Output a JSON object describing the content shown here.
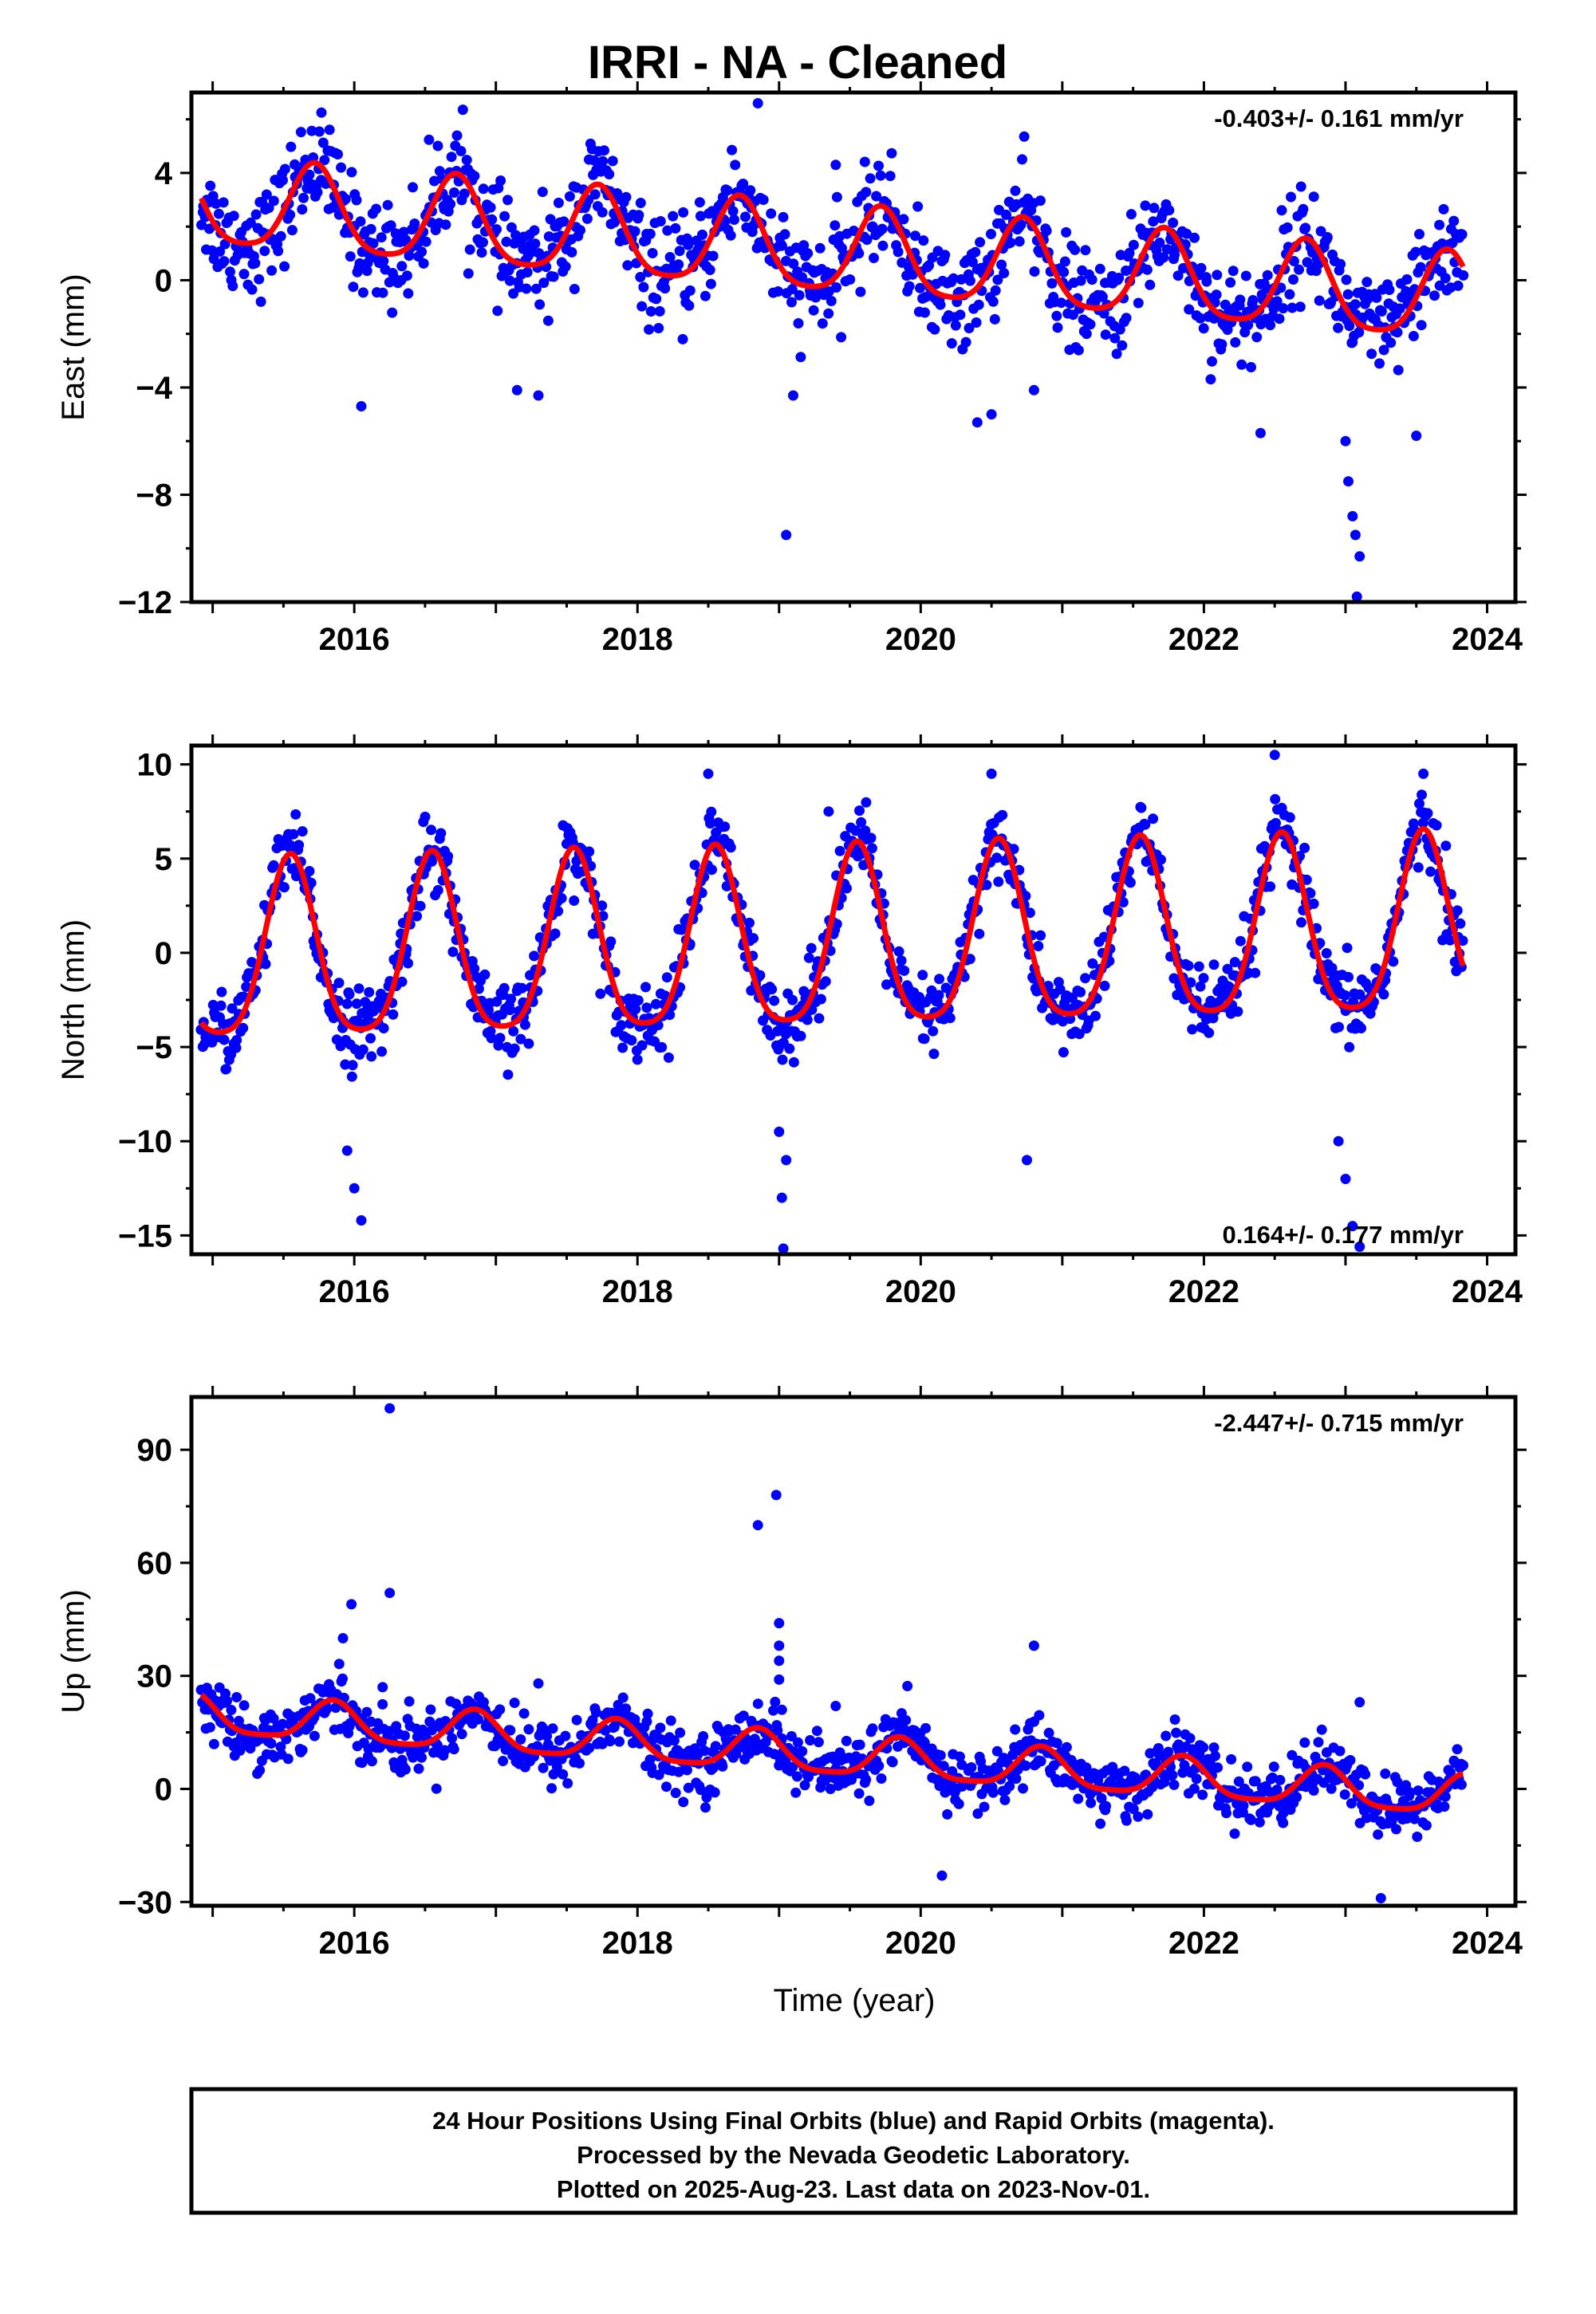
{
  "title": "IRRI  - NA - Cleaned",
  "colors": {
    "final_orbits": "#0000ff",
    "rapid_orbits": "#ff00ff",
    "model": "#ff0000",
    "frame": "#000000"
  },
  "chart_data": [
    {
      "type": "scatter",
      "ylabel": "East (mm)",
      "xlabel": "",
      "xlim": [
        2014.85,
        2024.2
      ],
      "ylim": [
        -12,
        7
      ],
      "xticks": [
        "2016",
        "2018",
        "2020",
        "2022",
        "2024"
      ],
      "yticks": [
        "4",
        "0",
        "−4",
        "−8",
        "−12"
      ],
      "rate_label": "-0.403+/- 0.161 mm/yr",
      "rate_position": "top-right",
      "model": {
        "offset": 1.0,
        "trend": -0.403,
        "annual_amp": 1.6,
        "annual_peak": 0.72,
        "semiannual_amp": 0.3
      },
      "scatter_stats": {
        "noise_sd": 0.95,
        "count": 1100
      },
      "outliers": [
        {
          "x": 2016.05,
          "y": -4.7
        },
        {
          "x": 2017.15,
          "y": -4.1
        },
        {
          "x": 2017.3,
          "y": -4.3
        },
        {
          "x": 2018.85,
          "y": 6.6
        },
        {
          "x": 2019.05,
          "y": -9.5
        },
        {
          "x": 2019.1,
          "y": -4.3
        },
        {
          "x": 2019.4,
          "y": 4.3
        },
        {
          "x": 2020.4,
          "y": -5.3
        },
        {
          "x": 2020.5,
          "y": -5.0
        },
        {
          "x": 2020.8,
          "y": -4.1
        },
        {
          "x": 2023.0,
          "y": -6.0
        },
        {
          "x": 2023.02,
          "y": -7.5
        },
        {
          "x": 2023.05,
          "y": -8.8
        },
        {
          "x": 2023.07,
          "y": -9.5
        },
        {
          "x": 2023.1,
          "y": -10.3
        },
        {
          "x": 2023.08,
          "y": -11.8
        },
        {
          "x": 2022.4,
          "y": -5.7
        },
        {
          "x": 2023.5,
          "y": -5.8
        }
      ]
    },
    {
      "type": "scatter",
      "ylabel": "North (mm)",
      "xlabel": "",
      "xlim": [
        2014.85,
        2024.2
      ],
      "ylim": [
        -16,
        11
      ],
      "xticks": [
        "2016",
        "2018",
        "2020",
        "2022",
        "2024"
      ],
      "yticks": [
        "10",
        "5",
        "0",
        "−5",
        "−10",
        "−15"
      ],
      "rate_label": "0.164+/- 0.177 mm/yr",
      "rate_position": "bottom-right",
      "model": {
        "offset": 0.3,
        "trend": 0.164,
        "annual_amp": 4.7,
        "annual_peak": 0.55,
        "semiannual_amp": 0.9
      },
      "scatter_stats": {
        "noise_sd": 1.0,
        "count": 1100
      },
      "outliers": [
        {
          "x": 2015.95,
          "y": -10.5
        },
        {
          "x": 2016.0,
          "y": -12.5
        },
        {
          "x": 2016.05,
          "y": -14.2
        },
        {
          "x": 2018.5,
          "y": 9.5
        },
        {
          "x": 2019.0,
          "y": -9.5
        },
        {
          "x": 2019.02,
          "y": -13.0
        },
        {
          "x": 2019.03,
          "y": -15.7
        },
        {
          "x": 2019.05,
          "y": -11.0
        },
        {
          "x": 2020.5,
          "y": 9.5
        },
        {
          "x": 2020.75,
          "y": -11.0
        },
        {
          "x": 2022.5,
          "y": 10.5
        },
        {
          "x": 2022.95,
          "y": -10.0
        },
        {
          "x": 2023.0,
          "y": -12.0
        },
        {
          "x": 2023.05,
          "y": -14.5
        },
        {
          "x": 2023.1,
          "y": -15.6
        },
        {
          "x": 2023.55,
          "y": 9.5
        },
        {
          "x": 2019.35,
          "y": 7.5
        }
      ]
    },
    {
      "type": "scatter",
      "ylabel": "Up (mm)",
      "xlabel": "Time (year)",
      "xlim": [
        2014.85,
        2024.2
      ],
      "ylim": [
        -31,
        104
      ],
      "xticks": [
        "2016",
        "2018",
        "2020",
        "2022",
        "2024"
      ],
      "yticks": [
        "90",
        "60",
        "30",
        "0",
        "−30"
      ],
      "rate_label": "-2.447+/- 0.715 mm/yr",
      "rate_position": "top-right",
      "model": {
        "offset": 8.5,
        "trend": -2.447,
        "annual_amp": 5.2,
        "annual_peak": 0.85,
        "semiannual_amp": 1.2
      },
      "scatter_stats": {
        "noise_sd": 4.0,
        "count": 1100
      },
      "outliers": [
        {
          "x": 2016.25,
          "y": 101
        },
        {
          "x": 2016.25,
          "y": 52
        },
        {
          "x": 2015.98,
          "y": 49
        },
        {
          "x": 2015.92,
          "y": 40
        },
        {
          "x": 2016.2,
          "y": 27
        },
        {
          "x": 2017.3,
          "y": 28
        },
        {
          "x": 2018.85,
          "y": 70
        },
        {
          "x": 2018.98,
          "y": 78
        },
        {
          "x": 2019.0,
          "y": 44
        },
        {
          "x": 2019.0,
          "y": 38
        },
        {
          "x": 2019.0,
          "y": 34
        },
        {
          "x": 2019.0,
          "y": 29
        },
        {
          "x": 2019.02,
          "y": 21
        },
        {
          "x": 2019.4,
          "y": 22
        },
        {
          "x": 2020.8,
          "y": 38
        },
        {
          "x": 2023.1,
          "y": 23
        },
        {
          "x": 2023.25,
          "y": -29
        },
        {
          "x": 2020.15,
          "y": -23
        }
      ]
    }
  ],
  "footer": {
    "line1": "24 Hour Positions Using Final Orbits (blue) and Rapid Orbits (magenta).",
    "line2": "Processed by the Nevada Geodetic Laboratory.",
    "line3": "Plotted on 2025-Aug-23. Last data on 2023-Nov-01."
  }
}
